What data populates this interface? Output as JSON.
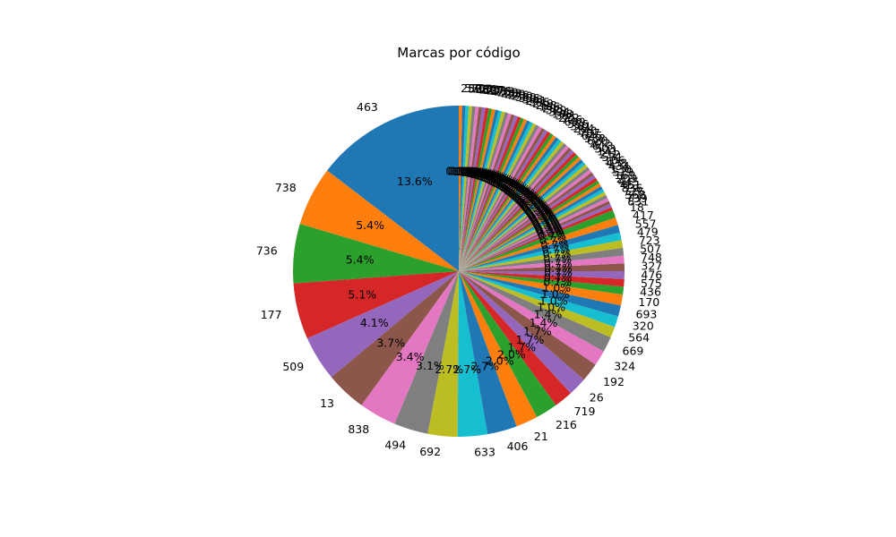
{
  "chart_data": {
    "type": "pie",
    "title": "Marcas por código",
    "start_angle_deg": 90,
    "counterclock": true,
    "slices": [
      {
        "label": "463",
        "pct": 13.6,
        "pct_label": "13.6%"
      },
      {
        "label": "738",
        "pct": 5.4,
        "pct_label": "5.4%"
      },
      {
        "label": "736",
        "pct": 5.4,
        "pct_label": "5.4%"
      },
      {
        "label": "177",
        "pct": 5.1,
        "pct_label": "5.1%"
      },
      {
        "label": "509",
        "pct": 4.1,
        "pct_label": "4.1%"
      },
      {
        "label": "13",
        "pct": 3.7,
        "pct_label": "3.7%"
      },
      {
        "label": "838",
        "pct": 3.4,
        "pct_label": "3.4%"
      },
      {
        "label": "494",
        "pct": 3.1,
        "pct_label": "3.1%"
      },
      {
        "label": "692",
        "pct": 2.7,
        "pct_label": "2.7%"
      },
      {
        "label": "633",
        "pct": 2.7,
        "pct_label": "2.7%"
      },
      {
        "label": "406",
        "pct": 2.7,
        "pct_label": "2.7%"
      },
      {
        "label": "21",
        "pct": 2.0,
        "pct_label": "2.0%"
      },
      {
        "label": "216",
        "pct": 2.0,
        "pct_label": "2.0%"
      },
      {
        "label": "719",
        "pct": 1.7,
        "pct_label": "1.7%"
      },
      {
        "label": "26",
        "pct": 1.7,
        "pct_label": "1.7%"
      },
      {
        "label": "192",
        "pct": 1.7,
        "pct_label": "1.7%"
      },
      {
        "label": "324",
        "pct": 1.4,
        "pct_label": "1.4%"
      },
      {
        "label": "669",
        "pct": 1.4,
        "pct_label": "1.4%"
      },
      {
        "label": "564",
        "pct": 1.0,
        "pct_label": "1.0%"
      },
      {
        "label": "320",
        "pct": 1.0,
        "pct_label": "1.0%"
      },
      {
        "label": "693",
        "pct": 1.0,
        "pct_label": "1.0%"
      },
      {
        "label": "170",
        "pct": 1.0,
        "pct_label": "1.0%"
      },
      {
        "label": "436",
        "pct": 0.7,
        "pct_label": "0.7%"
      },
      {
        "label": "575",
        "pct": 0.7,
        "pct_label": "0.7%"
      },
      {
        "label": "476",
        "pct": 0.7,
        "pct_label": "0.7%"
      },
      {
        "label": "327",
        "pct": 0.7,
        "pct_label": "0.7%"
      },
      {
        "label": "748",
        "pct": 0.7,
        "pct_label": "0.7%"
      },
      {
        "label": "507",
        "pct": 0.7,
        "pct_label": "0.7%"
      },
      {
        "label": "723",
        "pct": 0.7,
        "pct_label": "0.7%"
      },
      {
        "label": "479",
        "pct": 0.7,
        "pct_label": "0.7%"
      },
      {
        "label": "557",
        "pct": 0.7,
        "pct_label": "0.7%"
      },
      {
        "label": "417",
        "pct": 0.7,
        "pct_label": "0.7%"
      },
      {
        "label": "18",
        "pct": 0.7,
        "pct_label": "0.7%"
      },
      {
        "label": "831",
        "pct": 0.3,
        "pct_label": "0.3%"
      },
      {
        "label": "739",
        "pct": 0.3,
        "pct_label": "0.3%"
      },
      {
        "label": "368",
        "pct": 0.3,
        "pct_label": "0.3%"
      },
      {
        "label": "726",
        "pct": 0.3,
        "pct_label": "0.3%"
      },
      {
        "label": "836",
        "pct": 0.3,
        "pct_label": "0.3%"
      },
      {
        "label": "461",
        "pct": 0.3,
        "pct_label": "0.3%"
      },
      {
        "label": "445",
        "pct": 0.3,
        "pct_label": "0.3%"
      },
      {
        "label": "209",
        "pct": 0.3,
        "pct_label": "0.3%"
      },
      {
        "label": "169",
        "pct": 0.3,
        "pct_label": "0.3%"
      },
      {
        "label": "529",
        "pct": 0.3,
        "pct_label": "0.3%"
      },
      {
        "label": "130",
        "pct": 0.3,
        "pct_label": "0.3%"
      },
      {
        "label": "434",
        "pct": 0.3,
        "pct_label": "0.3%"
      },
      {
        "label": "438",
        "pct": 0.3,
        "pct_label": "0.3%"
      },
      {
        "label": "106",
        "pct": 0.3,
        "pct_label": "0.3%"
      },
      {
        "label": "531",
        "pct": 0.3,
        "pct_label": "0.3%"
      },
      {
        "label": "212",
        "pct": 0.3,
        "pct_label": "0.3%"
      },
      {
        "label": "141",
        "pct": 0.3,
        "pct_label": "0.3%"
      },
      {
        "label": "503",
        "pct": 0.3,
        "pct_label": "0.3%"
      },
      {
        "label": "613",
        "pct": 0.3,
        "pct_label": "0.3%"
      },
      {
        "label": "272",
        "pct": 0.3,
        "pct_label": "0.3%"
      },
      {
        "label": "620",
        "pct": 0.3,
        "pct_label": "0.3%"
      },
      {
        "label": "538",
        "pct": 0.3,
        "pct_label": "0.3%"
      },
      {
        "label": "645",
        "pct": 0.3,
        "pct_label": "0.3%"
      },
      {
        "label": "787",
        "pct": 0.3,
        "pct_label": "0.3%"
      },
      {
        "label": "140",
        "pct": 0.3,
        "pct_label": "0.3%"
      },
      {
        "label": "264",
        "pct": 0.3,
        "pct_label": "0.3%"
      },
      {
        "label": "381",
        "pct": 0.3,
        "pct_label": "0.3%"
      },
      {
        "label": "556",
        "pct": 0.3,
        "pct_label": "0.3%"
      },
      {
        "label": "609",
        "pct": 0.3,
        "pct_label": "0.3%"
      },
      {
        "label": "726",
        "pct": 0.3,
        "pct_label": "0.3%"
      },
      {
        "label": "272",
        "pct": 0.3,
        "pct_label": "0.3%"
      },
      {
        "label": "351",
        "pct": 0.3,
        "pct_label": "0.3%"
      },
      {
        "label": "108",
        "pct": 0.3,
        "pct_label": "0.3%"
      },
      {
        "label": "394",
        "pct": 0.3,
        "pct_label": "0.3%"
      },
      {
        "label": "529",
        "pct": 0.3,
        "pct_label": "0.3%"
      },
      {
        "label": "203",
        "pct": 0.3,
        "pct_label": "0.3%"
      },
      {
        "label": "166",
        "pct": 0.3,
        "pct_label": "0.3%"
      },
      {
        "label": "228",
        "pct": 0.3,
        "pct_label": "0.3%"
      },
      {
        "label": "289",
        "pct": 0.3,
        "pct_label": "0.3%"
      },
      {
        "label": "535",
        "pct": 0.3,
        "pct_label": "0.3%"
      },
      {
        "label": "241",
        "pct": 0.3,
        "pct_label": "0.3%"
      },
      {
        "label": "583",
        "pct": 0.3,
        "pct_label": "0.3%"
      },
      {
        "label": "556",
        "pct": 0.3,
        "pct_label": "0.3%"
      },
      {
        "label": "580",
        "pct": 0.3,
        "pct_label": "0.3%"
      },
      {
        "label": "200",
        "pct": 0.3,
        "pct_label": "0.3%"
      },
      {
        "label": "276",
        "pct": 0.3,
        "pct_label": "0.3%"
      },
      {
        "label": "209",
        "pct": 0.3,
        "pct_label": "0.3%"
      },
      {
        "label": "283",
        "pct": 0.3,
        "pct_label": "0.3%"
      },
      {
        "label": "259",
        "pct": 0.3,
        "pct_label": "0.3%"
      },
      {
        "label": "233",
        "pct": 0.3,
        "pct_label": "0.3%"
      },
      {
        "label": "576",
        "pct": 0.3,
        "pct_label": "0.3%"
      },
      {
        "label": "291",
        "pct": 0.3,
        "pct_label": "0.3%"
      },
      {
        "label": "527",
        "pct": 0.3,
        "pct_label": "0.3%"
      },
      {
        "label": "278",
        "pct": 0.3,
        "pct_label": "0.3%"
      },
      {
        "label": "586",
        "pct": 0.3,
        "pct_label": "0.3%"
      },
      {
        "label": "568",
        "pct": 0.3,
        "pct_label": "0.3%"
      },
      {
        "label": "506",
        "pct": 0.3,
        "pct_label": "0.3%"
      },
      {
        "label": "570",
        "pct": 0.3,
        "pct_label": "0.3%"
      },
      {
        "label": "257",
        "pct": 0.3,
        "pct_label": "0.3%"
      }
    ],
    "colors": [
      "#1f77b4",
      "#ff7f0e",
      "#2ca02c",
      "#d62728",
      "#9467bd",
      "#8c564b",
      "#e377c2",
      "#7f7f7f",
      "#bcbd22",
      "#17becf"
    ]
  }
}
